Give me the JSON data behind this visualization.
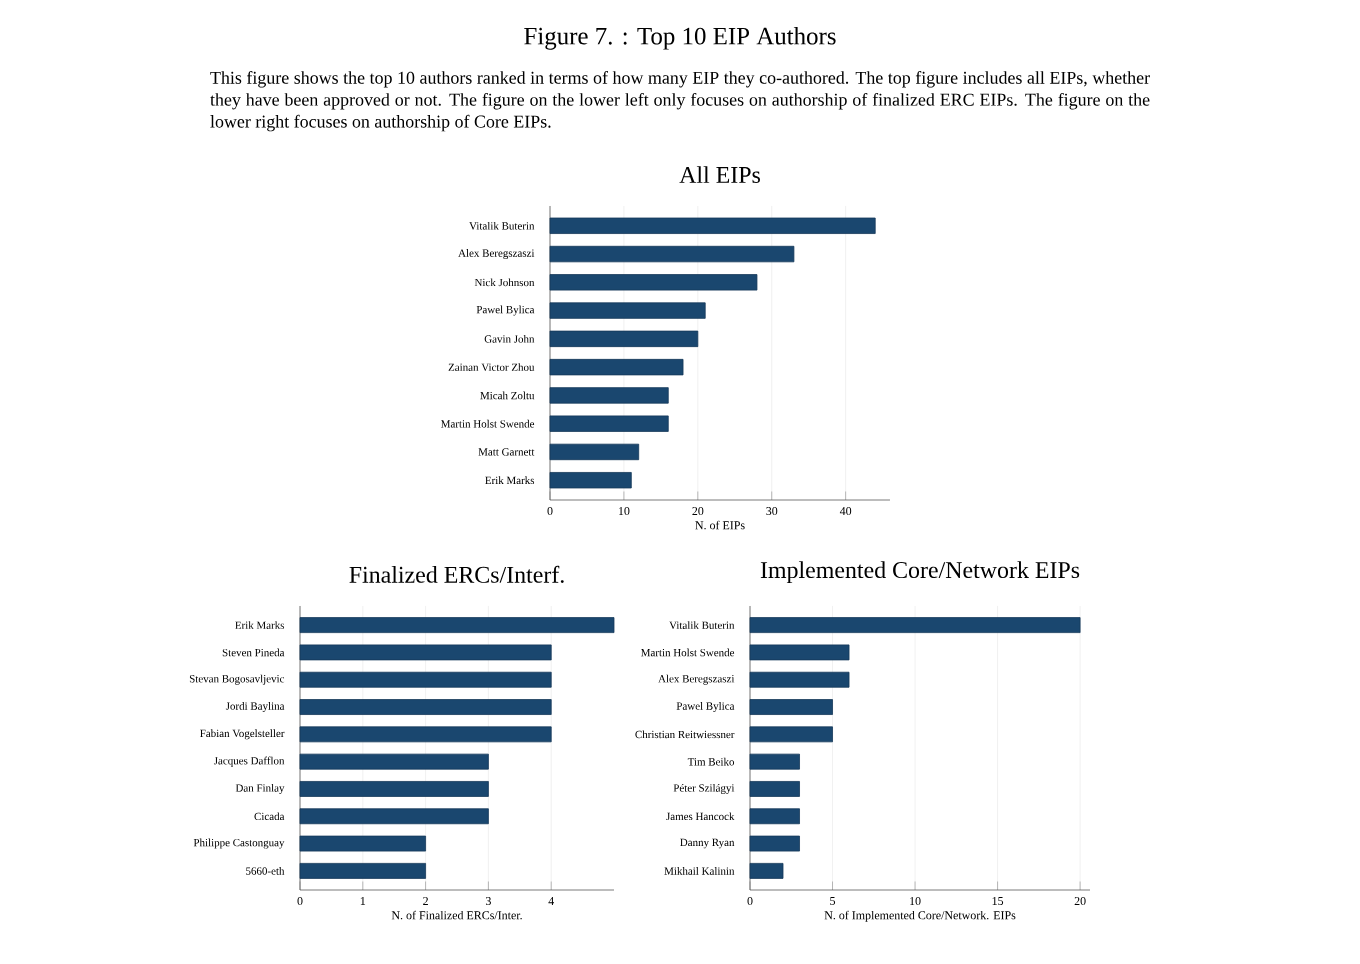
{
  "chart_data": [
    {
      "type": "other",
      "title": "Figure 7. : Top 10 EIP Authors",
      "subtitle": "This figure shows the top 10 authors ranked in terms of how many EIP they co-authored. The top figure includes all EIPs, whether they have been approved or not. The figure on the lower left only focuses on authorship of finalized ERC EIPs. The figure on the lower right focuses on authorship of Core EIPs."
    },
    {
      "type": "bar",
      "orientation": "horizontal",
      "title": "All EIPs",
      "xlabel": "N. of EIPs",
      "color": "#1a476f",
      "grid": "x",
      "categories": [
        "Vitalik Buterin",
        "Alex Beregszaszi",
        "Nick Johnson",
        "Pawel Bylica",
        "Gavin John",
        "Zainan Victor Zhou",
        "Micah Zoltu",
        "Martin Holst Swende",
        "Matt Garnett",
        "Erik Marks"
      ],
      "values": [
        44,
        33,
        28,
        21,
        20,
        18,
        16,
        16,
        12,
        11
      ],
      "xlim": [
        0,
        46
      ],
      "xticks": [
        0,
        10,
        20,
        30,
        40
      ]
    },
    {
      "type": "bar",
      "orientation": "horizontal",
      "title": "Finalized ERCs/Interf.",
      "xlabel": "N. of Finalized ERCs/Inter.",
      "color": "#1a476f",
      "grid": "x",
      "categories": [
        "Erik Marks",
        "Steven Pineda",
        "Stevan Bogosavljevic",
        "Jordi Baylina",
        "Fabian Vogelsteller",
        "Jacques Dafflon",
        "Dan Finlay",
        "Cicada",
        "Philippe Castonguay",
        "5660-eth"
      ],
      "values": [
        5,
        4,
        4,
        4,
        4,
        3,
        3,
        3,
        2,
        2
      ],
      "xlim": [
        0,
        5
      ],
      "xticks": [
        0,
        1,
        2,
        3,
        4
      ]
    },
    {
      "type": "bar",
      "orientation": "horizontal",
      "title": "Implemented Core/Network EIPs",
      "xlabel": "N. of Implemented Core/Network. EIPs",
      "color": "#1a476f",
      "grid": "x",
      "categories": [
        "Vitalik Buterin",
        "Martin Holst Swende",
        "Alex Beregszaszi",
        "Pawel Bylica",
        "Christian Reitwiessner",
        "Tim Beiko",
        "Péter Szilágyi",
        "James Hancock",
        "Danny Ryan",
        "Mikhail Kalinin"
      ],
      "values": [
        20,
        6,
        6,
        5,
        5,
        3,
        3,
        3,
        3,
        2
      ],
      "xlim": [
        0,
        20.6
      ],
      "xticks": [
        0,
        5,
        10,
        15,
        20
      ]
    }
  ]
}
